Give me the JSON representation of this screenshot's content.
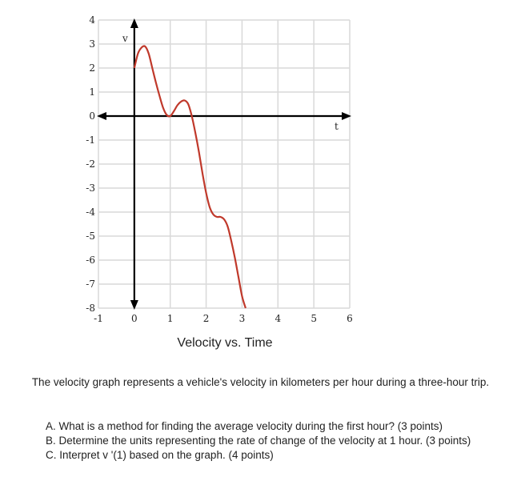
{
  "chart_data": {
    "type": "line",
    "title": "Velocity vs. Time",
    "xlabel": "t",
    "ylabel": "v",
    "xlim": [
      -1,
      6
    ],
    "ylim": [
      -8,
      4
    ],
    "x_ticks": [
      "-1",
      "0",
      "1",
      "2",
      "3",
      "4",
      "5",
      "6"
    ],
    "y_ticks": [
      "4",
      "3",
      "2",
      "1",
      "0",
      "-1",
      "-2",
      "-3",
      "-4",
      "-5",
      "-6",
      "-7",
      "-8"
    ],
    "grid": true,
    "colors": {
      "curve": "#c0392b",
      "axis": "#000000",
      "grid": "#d9d9d9"
    },
    "series": [
      {
        "x": [
          0,
          0.1,
          0.2,
          0.3,
          0.4,
          0.5,
          0.6,
          0.7,
          0.8,
          0.9,
          1.0,
          1.1,
          1.2,
          1.3,
          1.4,
          1.5,
          1.6,
          1.7,
          1.8,
          1.9,
          2.0,
          2.1,
          2.2,
          2.3,
          2.4,
          2.5,
          2.6,
          2.7,
          2.8,
          2.9,
          3.0,
          3.1
        ],
        "y": [
          2.0,
          2.6,
          2.85,
          2.9,
          2.6,
          2.0,
          1.4,
          0.85,
          0.35,
          0.05,
          0.0,
          0.2,
          0.45,
          0.6,
          0.65,
          0.5,
          0.0,
          -0.7,
          -1.5,
          -2.4,
          -3.2,
          -3.8,
          -4.1,
          -4.2,
          -4.2,
          -4.3,
          -4.6,
          -5.2,
          -5.9,
          -6.7,
          -7.5,
          -8.0
        ]
      }
    ]
  },
  "description": "The velocity graph represents a vehicle's velocity in kilometers per hour during a three-hour trip.",
  "questions": [
    "A. What is a method for finding the average velocity during the first hour? (3 points)",
    "B. Determine the units representing the rate of change of the velocity at 1 hour. (3 points)",
    "C. Interpret v '(1) based on the graph. (4 points)"
  ]
}
